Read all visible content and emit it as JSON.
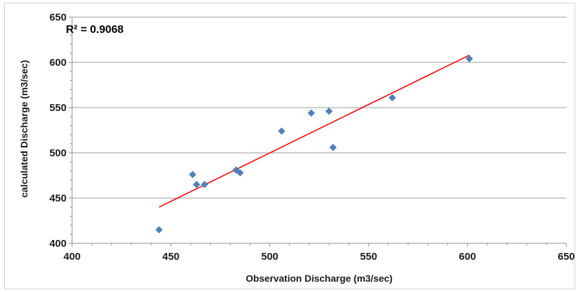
{
  "chart_data": {
    "type": "scatter",
    "xlabel": "Observation Discharge (m3/sec)",
    "ylabel": "calculated Discharge (m3/sec)",
    "xlim": [
      400,
      650
    ],
    "ylim": [
      400,
      650
    ],
    "xticks": [
      400,
      450,
      500,
      550,
      600,
      650
    ],
    "yticks": [
      400,
      450,
      500,
      550,
      600,
      650
    ],
    "x_tick_labels": [
      "400",
      "450",
      "500",
      "550",
      "600",
      "650"
    ],
    "y_tick_labels": [
      "400",
      "450",
      "500",
      "550",
      "600",
      "650"
    ],
    "grid": "horizontal",
    "annotation": "R² = 0.9068",
    "points": [
      {
        "x": 444,
        "y": 415
      },
      {
        "x": 461,
        "y": 476
      },
      {
        "x": 463,
        "y": 465
      },
      {
        "x": 467,
        "y": 465
      },
      {
        "x": 483,
        "y": 481
      },
      {
        "x": 485,
        "y": 478
      },
      {
        "x": 506,
        "y": 524
      },
      {
        "x": 521,
        "y": 544
      },
      {
        "x": 530,
        "y": 546
      },
      {
        "x": 532,
        "y": 506
      },
      {
        "x": 562,
        "y": 561
      },
      {
        "x": 601,
        "y": 604
      }
    ],
    "trendline": {
      "x1": 444,
      "y1": 440,
      "x2": 601,
      "y2": 608
    },
    "marker_color": "#4f81bd",
    "trendline_color": "#ff0000"
  }
}
